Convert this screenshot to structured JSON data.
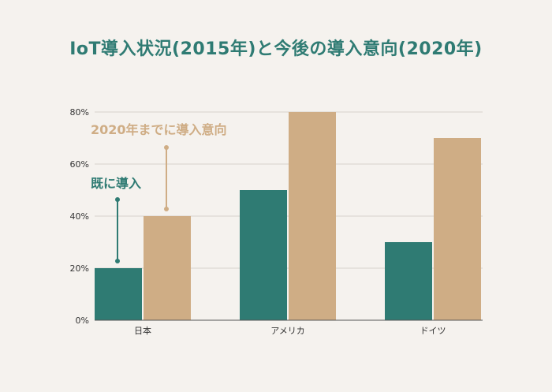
{
  "chart_data": {
    "type": "bar",
    "title": "IoT導入状況(2015年)と今後の導入意向(2020年)",
    "categories": [
      "日本",
      "アメリカ",
      "ドイツ"
    ],
    "series": [
      {
        "name": "既に導入",
        "values": [
          20,
          50,
          30
        ],
        "color": "#2f7b73"
      },
      {
        "name": "2020年までに導入意向",
        "values": [
          40,
          80,
          70
        ],
        "color": "#cfad85"
      }
    ],
    "ylim": [
      0,
      80
    ],
    "yticks": [
      0,
      20,
      40,
      60,
      80
    ],
    "ytick_labels": [
      "0%",
      "20%",
      "40%",
      "60%",
      "80%"
    ],
    "grid": true,
    "xlabel": "",
    "ylabel": ""
  }
}
